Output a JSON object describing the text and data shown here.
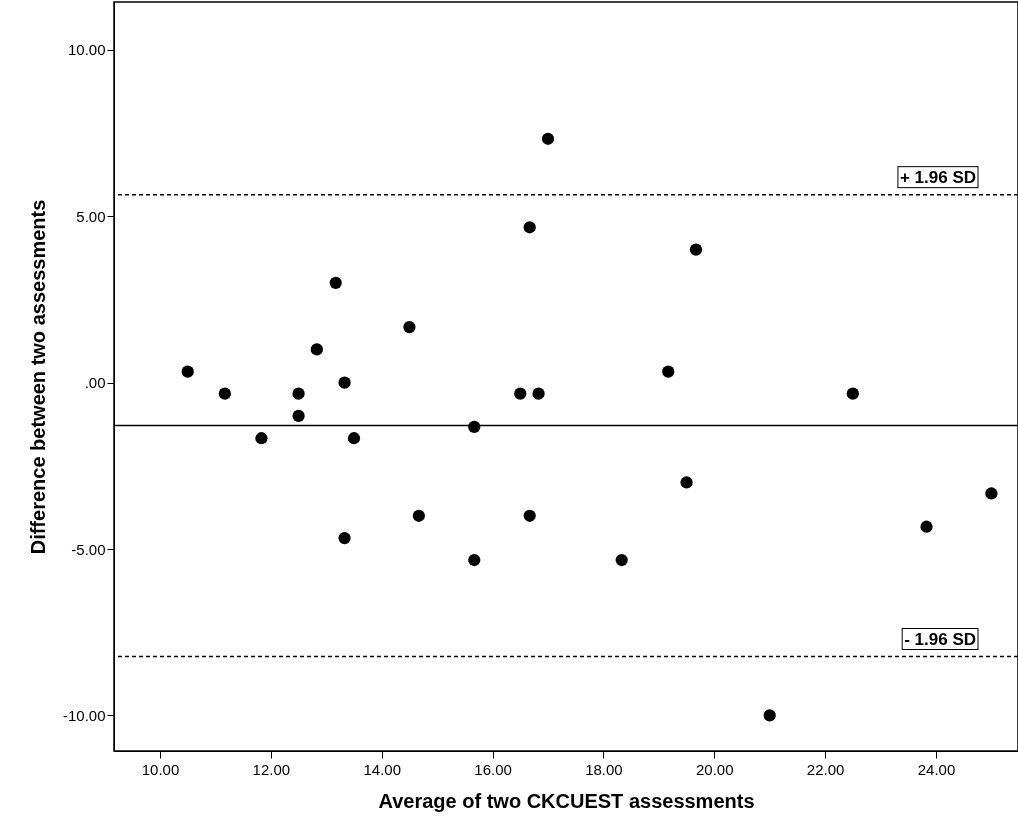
{
  "chart_data": {
    "type": "scatter",
    "xlabel": "Average of two CKCUEST assessments",
    "ylabel": "Difference between two assessments",
    "x": [
      10.5,
      11.17,
      11.83,
      12.5,
      12.5,
      12.83,
      13.17,
      13.33,
      13.33,
      13.5,
      14.5,
      14.67,
      15.67,
      15.67,
      16.5,
      16.67,
      16.67,
      16.83,
      17.0,
      18.33,
      19.17,
      19.5,
      19.67,
      21.0,
      22.5,
      23.83,
      25.0
    ],
    "series": [
      {
        "color": "#000000",
        "values": [
          0.33,
          -0.33,
          -1.67,
          -0.33,
          -1.0,
          1.0,
          3.0,
          0.0,
          -4.67,
          -1.67,
          1.67,
          -4.0,
          -1.33,
          -5.33,
          -0.33,
          4.67,
          -4.0,
          -0.33,
          7.33,
          -5.33,
          0.33,
          -3.0,
          4.0,
          -10.0,
          -0.33,
          -4.33,
          -3.33
        ]
      }
    ],
    "marker": "circle",
    "xlim": [
      9.17,
      25.48
    ],
    "ylim": [
      -11.07,
      11.44
    ],
    "xticks": [
      {
        "value": 10,
        "label": "10.00"
      },
      {
        "value": 12,
        "label": "12.00"
      },
      {
        "value": 14,
        "label": "14.00"
      },
      {
        "value": 16,
        "label": "16.00"
      },
      {
        "value": 18,
        "label": "18.00"
      },
      {
        "value": 20,
        "label": "20.00"
      },
      {
        "value": 22,
        "label": "22.00"
      },
      {
        "value": 24,
        "label": "24.00"
      }
    ],
    "yticks": [
      {
        "value": -10,
        "label": "-10.00"
      },
      {
        "value": -5,
        "label": "-5.00"
      },
      {
        "value": 0,
        "label": ".00"
      },
      {
        "value": 5,
        "label": "5.00"
      },
      {
        "value": 10,
        "label": "10.00"
      }
    ],
    "ref_lines": [
      {
        "axis": "y",
        "value": 5.65,
        "label": "+ 1.96 SD",
        "color": "#000000",
        "line_style": "dashed"
      },
      {
        "axis": "y",
        "value": -1.29,
        "color": "#000000",
        "line_style": "solid"
      },
      {
        "axis": "y",
        "value": -8.23,
        "label": "- 1.96 SD",
        "color": "#000000",
        "line_style": "dashed"
      }
    ]
  }
}
